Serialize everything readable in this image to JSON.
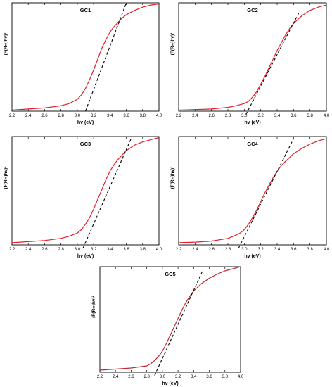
{
  "chart_data": [
    {
      "type": "line",
      "title": "GC1",
      "xlabel": "hv (eV)",
      "ylabel": "(F(R∞)hv)²",
      "xlim": [
        2.2,
        4.0
      ],
      "ylim": [
        0,
        1
      ],
      "xticks": [
        "2.2",
        "2.4",
        "2.6",
        "2.8",
        "3.0",
        "3.2",
        "3.4",
        "3.6",
        "3.8",
        "4.0"
      ],
      "series": [
        {
          "color": "#e0202a",
          "x": [
            2.2,
            2.4,
            2.6,
            2.8,
            2.9,
            3.0,
            3.05,
            3.1,
            3.15,
            3.2,
            3.25,
            3.3,
            3.35,
            3.4,
            3.45,
            3.5,
            3.55,
            3.6,
            3.7,
            3.8,
            3.9,
            4.0
          ],
          "y": [
            0.01,
            0.02,
            0.03,
            0.05,
            0.07,
            0.11,
            0.15,
            0.21,
            0.29,
            0.38,
            0.48,
            0.58,
            0.66,
            0.73,
            0.78,
            0.82,
            0.86,
            0.89,
            0.93,
            0.96,
            0.98,
            0.99
          ]
        }
      ],
      "tangent": {
        "x": [
          3.1,
          3.6
        ],
        "y": [
          0.0,
          1.0
        ]
      }
    },
    {
      "type": "line",
      "title": "GC2",
      "xlabel": "hv (eV)",
      "ylabel": "(F(R∞)hv)²",
      "xlim": [
        2.2,
        4.0
      ],
      "ylim": [
        0,
        1
      ],
      "xticks": [
        "2.2",
        "2.4",
        "2.6",
        "2.8",
        "3.0",
        "3.2",
        "3.4",
        "3.6",
        "3.8",
        "4.0"
      ],
      "series": [
        {
          "color": "#e0202a",
          "x": [
            2.2,
            2.4,
            2.6,
            2.8,
            2.9,
            3.0,
            3.05,
            3.1,
            3.15,
            3.2,
            3.25,
            3.3,
            3.35,
            3.4,
            3.45,
            3.5,
            3.55,
            3.6,
            3.7,
            3.8,
            3.9,
            4.0
          ],
          "y": [
            0.01,
            0.015,
            0.02,
            0.035,
            0.05,
            0.07,
            0.09,
            0.13,
            0.18,
            0.25,
            0.32,
            0.4,
            0.48,
            0.56,
            0.63,
            0.7,
            0.76,
            0.81,
            0.88,
            0.93,
            0.96,
            0.98
          ]
        }
      ],
      "tangent": {
        "x": [
          3.02,
          3.68
        ],
        "y": [
          -0.03,
          0.93
        ]
      }
    },
    {
      "type": "line",
      "title": "GC3",
      "xlabel": "hv (eV)",
      "ylabel": "(F(R∞)hv)²",
      "xlim": [
        2.2,
        4.0
      ],
      "ylim": [
        0,
        1
      ],
      "xticks": [
        "2.2",
        "2.4",
        "2.6",
        "2.8",
        "3.0",
        "3.2",
        "3.4",
        "3.6",
        "3.8",
        "4.0"
      ],
      "series": [
        {
          "color": "#e0202a",
          "x": [
            2.2,
            2.4,
            2.6,
            2.8,
            2.9,
            3.0,
            3.05,
            3.1,
            3.15,
            3.2,
            3.25,
            3.3,
            3.35,
            3.4,
            3.45,
            3.5,
            3.55,
            3.6,
            3.7,
            3.8,
            3.9,
            4.0
          ],
          "y": [
            0.02,
            0.03,
            0.04,
            0.06,
            0.08,
            0.11,
            0.14,
            0.19,
            0.25,
            0.33,
            0.42,
            0.51,
            0.6,
            0.68,
            0.74,
            0.79,
            0.83,
            0.87,
            0.92,
            0.95,
            0.97,
            0.99
          ]
        }
      ],
      "tangent": {
        "x": [
          3.07,
          3.67
        ],
        "y": [
          -0.03,
          1.0
        ]
      }
    },
    {
      "type": "line",
      "title": "GC4",
      "xlabel": "hv (eV)",
      "ylabel": "(F(R∞)hv)²",
      "xlim": [
        2.2,
        4.0
      ],
      "ylim": [
        0,
        1
      ],
      "xticks": [
        "2.2",
        "2.4",
        "2.6",
        "2.8",
        "3.0",
        "3.2",
        "3.4",
        "3.6",
        "3.8",
        "4.0"
      ],
      "series": [
        {
          "color": "#e0202a",
          "x": [
            2.2,
            2.4,
            2.6,
            2.8,
            2.9,
            2.95,
            3.0,
            3.05,
            3.1,
            3.15,
            3.2,
            3.25,
            3.3,
            3.35,
            3.4,
            3.45,
            3.5,
            3.6,
            3.7,
            3.8,
            3.9,
            4.0
          ],
          "y": [
            0.02,
            0.025,
            0.035,
            0.06,
            0.09,
            0.11,
            0.14,
            0.19,
            0.25,
            0.32,
            0.4,
            0.48,
            0.55,
            0.62,
            0.68,
            0.73,
            0.77,
            0.84,
            0.89,
            0.93,
            0.96,
            0.98
          ]
        }
      ],
      "tangent": {
        "x": [
          2.93,
          3.6
        ],
        "y": [
          -0.03,
          0.98
        ]
      }
    },
    {
      "type": "line",
      "title": "GC5",
      "xlabel": "hv (eV)",
      "ylabel": "(F(R∞)hv)²",
      "xlim": [
        2.2,
        4.0
      ],
      "ylim": [
        0,
        1
      ],
      "xticks": [
        "2.2",
        "2.4",
        "2.6",
        "2.8",
        "3.0",
        "3.2",
        "3.4",
        "3.6",
        "3.8",
        "4.0"
      ],
      "series": [
        {
          "color": "#c0282d",
          "x": [
            2.2,
            2.4,
            2.6,
            2.8,
            2.85,
            2.9,
            2.95,
            3.0,
            3.05,
            3.1,
            3.15,
            3.2,
            3.25,
            3.3,
            3.35,
            3.4,
            3.5,
            3.6,
            3.7,
            3.8,
            3.9,
            4.0
          ],
          "y": [
            0.02,
            0.03,
            0.04,
            0.06,
            0.08,
            0.11,
            0.15,
            0.2,
            0.27,
            0.35,
            0.43,
            0.51,
            0.59,
            0.66,
            0.72,
            0.77,
            0.84,
            0.89,
            0.93,
            0.96,
            0.98,
            1.0
          ]
        }
      ],
      "tangent": {
        "x": [
          2.9,
          3.52
        ],
        "y": [
          -0.03,
          0.97
        ]
      }
    }
  ]
}
